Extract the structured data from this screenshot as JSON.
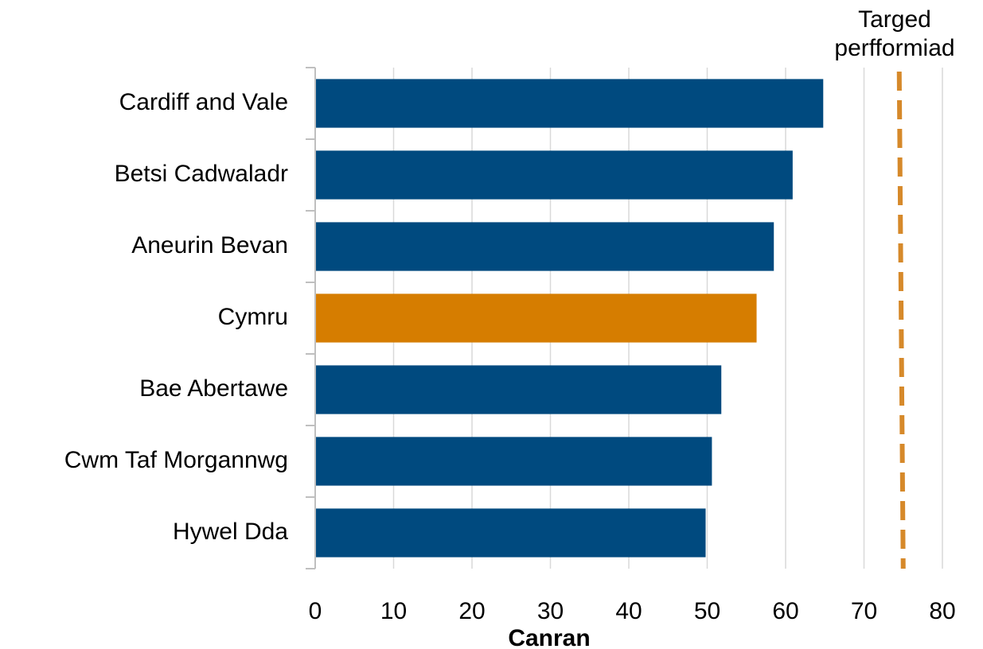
{
  "chart_data": {
    "type": "bar",
    "orientation": "horizontal",
    "categories": [
      "Cardiff and Vale",
      "Betsi Cadwaladr",
      "Aneurin Bevan",
      "Cymru",
      "Bae Abertawe",
      "Cwm Taf Morgannwg",
      "Hywel Dda"
    ],
    "values": [
      64.8,
      60.9,
      58.5,
      56.3,
      51.8,
      50.6,
      49.8
    ],
    "highlight_category": "Cymru",
    "xlabel": "Canran",
    "xlim": [
      0,
      80
    ],
    "x_ticks": [
      0,
      10,
      20,
      30,
      40,
      50,
      60,
      70,
      80
    ],
    "grid": "vertical",
    "target": {
      "value": 75,
      "label_lines": [
        "Targed",
        "perfformiad"
      ]
    },
    "colors": {
      "bar": "#004a7f",
      "highlight": "#d67d00",
      "target": "#d6892a",
      "grid": "#d9d9d9",
      "axis": "#bfbfbf"
    }
  }
}
